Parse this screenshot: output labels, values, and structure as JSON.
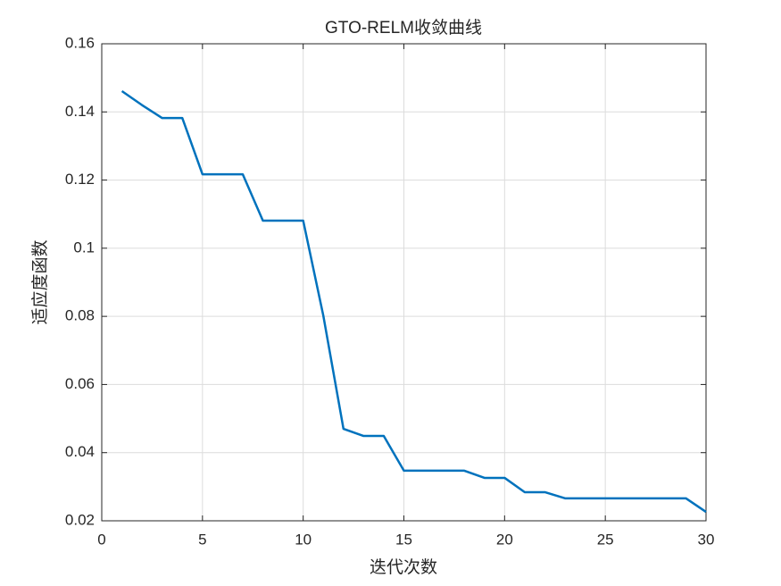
{
  "chart_data": {
    "type": "line",
    "title": "GTO-RELM收敛曲线",
    "xlabel": "迭代次数",
    "ylabel": "适应度函数",
    "x": [
      1,
      2,
      3,
      4,
      5,
      6,
      7,
      8,
      9,
      10,
      11,
      12,
      13,
      14,
      15,
      16,
      17,
      18,
      19,
      20,
      21,
      22,
      23,
      24,
      25,
      26,
      27,
      28,
      29,
      30
    ],
    "values": [
      0.1461,
      0.142,
      0.1382,
      0.1382,
      0.1217,
      0.1217,
      0.1217,
      0.1081,
      0.1081,
      0.1081,
      0.0802,
      0.047,
      0.0449,
      0.0449,
      0.0347,
      0.0347,
      0.0347,
      0.0347,
      0.0326,
      0.0326,
      0.0284,
      0.0284,
      0.0266,
      0.0266,
      0.0266,
      0.0266,
      0.0266,
      0.0266,
      0.0266,
      0.0226
    ],
    "color": "#0072bd",
    "xlim": [
      0,
      30
    ],
    "xticks": [
      0,
      5,
      10,
      15,
      20,
      25,
      30
    ],
    "ylim": [
      0.02,
      0.16
    ],
    "yticks": [
      0.02,
      0.04,
      0.06,
      0.08,
      0.1,
      0.12,
      0.14,
      0.16
    ],
    "grid": true
  }
}
